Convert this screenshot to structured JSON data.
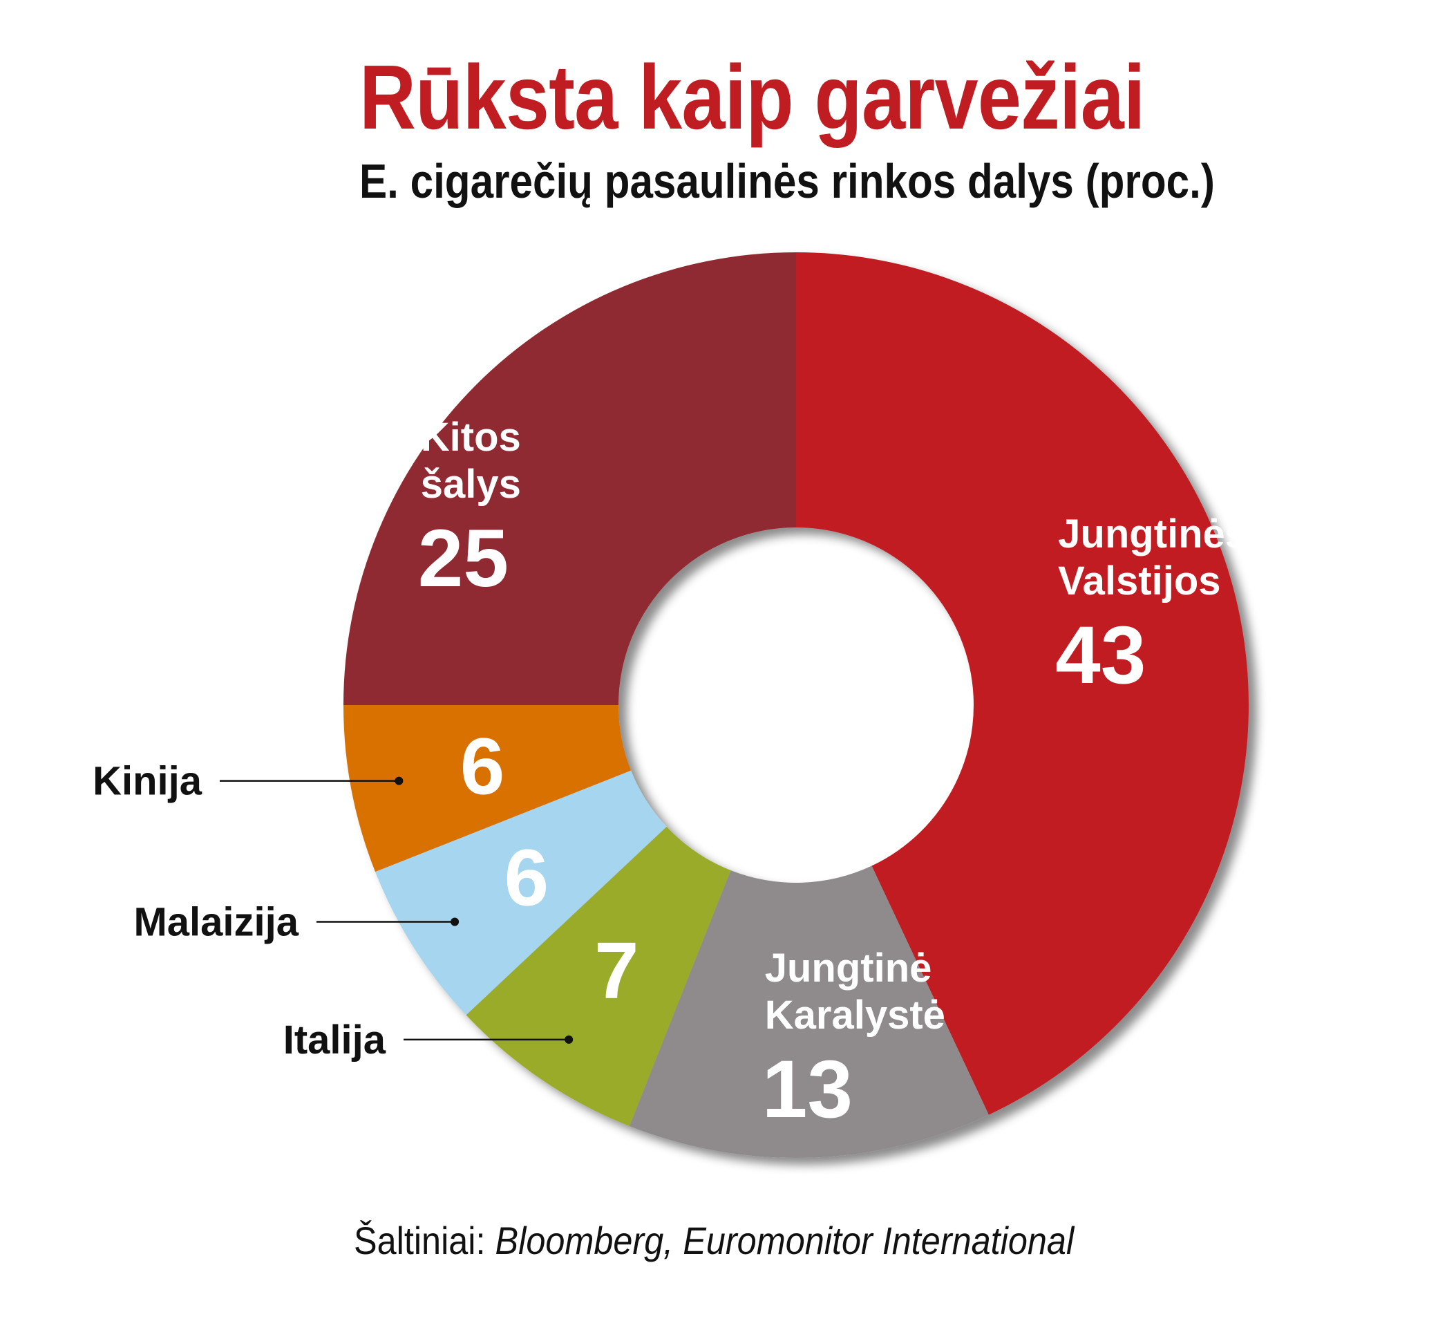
{
  "title": "Rūksta kaip garvežiai",
  "subtitle": "E. cigarečių pasaulinės rinkos dalys (proc.)",
  "source": {
    "prefix": "Šaltiniai: ",
    "names": "Bloomberg, Euromonitor International"
  },
  "chart_data": {
    "type": "pie",
    "donut": true,
    "unit": "proc.",
    "slices": [
      {
        "label": "Jungtinės Valstijos",
        "lines": [
          "Jungtinės",
          "Valstijos"
        ],
        "value": 43,
        "color": "#c01d22",
        "text_color": "#ffffff",
        "label_position": "inside"
      },
      {
        "label": "Jungtinė Karalystė",
        "lines": [
          "Jungtinė",
          "Karalystė"
        ],
        "value": 13,
        "color": "#8f8b8c",
        "text_color": "#ffffff",
        "label_position": "inside"
      },
      {
        "label": "Italija",
        "lines": [
          "Italija"
        ],
        "value": 7,
        "color": "#9aab2c",
        "text_color": "#ffffff",
        "label_position": "outside-left"
      },
      {
        "label": "Malaizija",
        "lines": [
          "Malaizija"
        ],
        "value": 6,
        "color": "#a5d5ef",
        "text_color": "#ffffff",
        "label_position": "outside-left"
      },
      {
        "label": "Kinija",
        "lines": [
          "Kinija"
        ],
        "value": 6,
        "color": "#d87102",
        "text_color": "#ffffff",
        "label_position": "outside-left"
      },
      {
        "label": "Kitos šalys",
        "lines": [
          "Kitos",
          "šalys"
        ],
        "value": 25,
        "color": "#902c31",
        "text_color": "#ffffff",
        "label_position": "inside"
      }
    ]
  }
}
